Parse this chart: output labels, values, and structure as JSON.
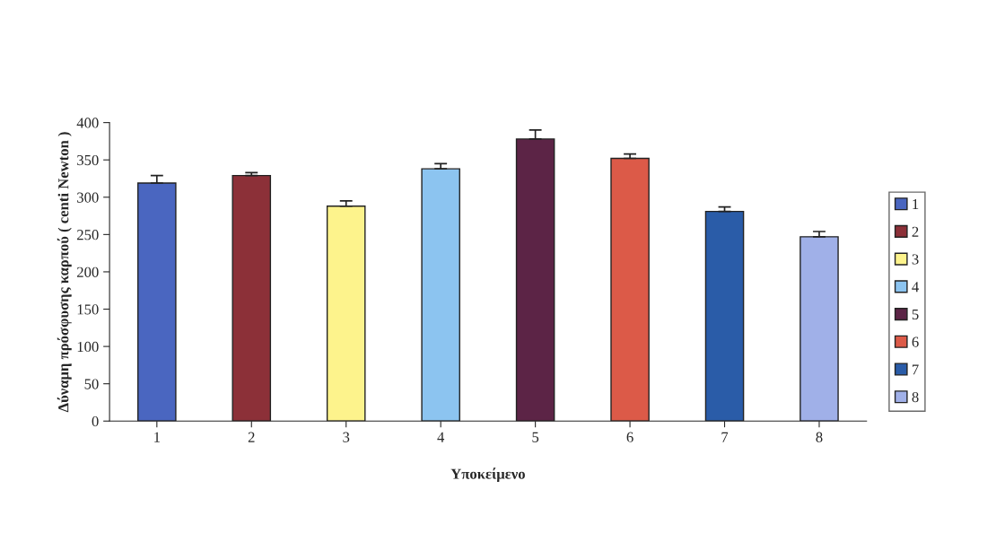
{
  "chart_data": {
    "type": "bar",
    "xlabel": "Υποκείμενο",
    "ylabel": "Δύναμη πρόσφυσης καρπού ( centi Newton )",
    "categories": [
      "1",
      "2",
      "3",
      "4",
      "5",
      "6",
      "7",
      "8"
    ],
    "series": [
      {
        "name": "1",
        "color": "#4a66c0",
        "values": [
          319,
          null,
          null,
          null,
          null,
          null,
          null,
          null
        ],
        "errors": [
          10,
          null,
          null,
          null,
          null,
          null,
          null,
          null
        ]
      },
      {
        "name": "2",
        "color": "#8c3038",
        "values": [
          null,
          329,
          null,
          null,
          null,
          null,
          null,
          null
        ],
        "errors": [
          null,
          4,
          null,
          null,
          null,
          null,
          null,
          null
        ]
      },
      {
        "name": "3",
        "color": "#fdf38c",
        "values": [
          null,
          null,
          288,
          null,
          null,
          null,
          null,
          null
        ],
        "errors": [
          null,
          null,
          7,
          null,
          null,
          null,
          null,
          null
        ]
      },
      {
        "name": "4",
        "color": "#8cc4f0",
        "values": [
          null,
          null,
          null,
          338,
          null,
          null,
          null,
          null
        ],
        "errors": [
          null,
          null,
          null,
          7,
          null,
          null,
          null,
          null
        ]
      },
      {
        "name": "5",
        "color": "#5c2446",
        "values": [
          null,
          null,
          null,
          null,
          378,
          null,
          null,
          null
        ],
        "errors": [
          null,
          null,
          null,
          null,
          12,
          null,
          null,
          null
        ]
      },
      {
        "name": "6",
        "color": "#dc5a48",
        "values": [
          null,
          null,
          null,
          null,
          null,
          352,
          null,
          null
        ],
        "errors": [
          null,
          null,
          null,
          null,
          null,
          6,
          null,
          null
        ]
      },
      {
        "name": "7",
        "color": "#2a5ca8",
        "values": [
          null,
          null,
          null,
          null,
          null,
          null,
          281,
          null
        ],
        "errors": [
          null,
          null,
          null,
          null,
          null,
          null,
          6,
          null
        ]
      },
      {
        "name": "8",
        "color": "#a0b0e8",
        "values": [
          null,
          null,
          null,
          null,
          null,
          null,
          null,
          247
        ],
        "errors": [
          null,
          null,
          null,
          null,
          null,
          null,
          null,
          7
        ]
      }
    ],
    "ylim": [
      0,
      400
    ],
    "yticks": [
      0,
      50,
      100,
      150,
      200,
      250,
      300,
      350,
      400
    ],
    "legend": "right",
    "grid": false
  }
}
